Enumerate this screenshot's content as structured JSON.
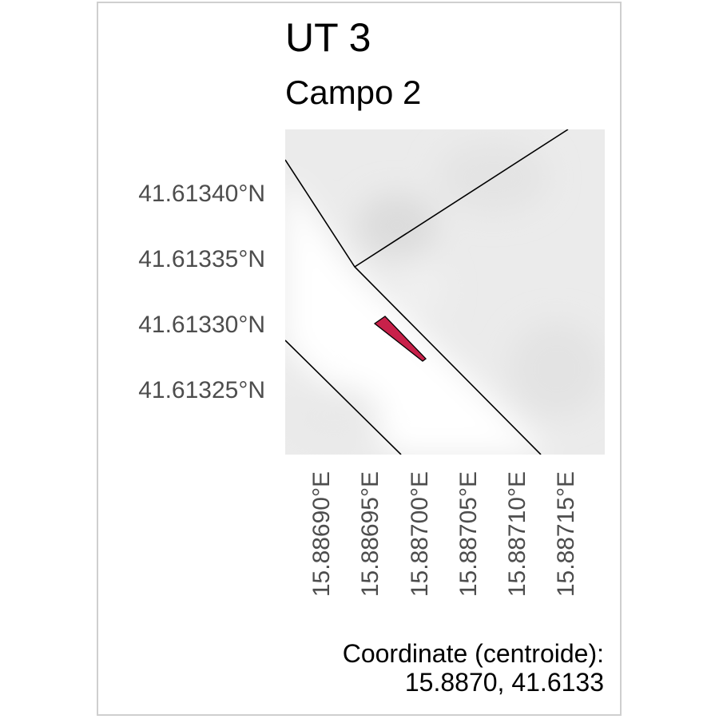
{
  "title": "UT 3",
  "subtitle": "Campo 2",
  "colors": {
    "background_tile": "#ebebeb",
    "road_band": "#fafafa",
    "parcel_lines": "#000000",
    "highlight_fill": "#c8214a",
    "axis_text": "#4d4d4d",
    "frame": "#cfcfcf"
  },
  "map": {
    "lat_labels": [
      "41.61340°N",
      "41.61335°N",
      "41.61330°N",
      "41.61325°N"
    ],
    "lon_labels": [
      "15.88690°E",
      "15.88695°E",
      "15.88700°E",
      "15.88705°E",
      "15.88710°E",
      "15.88715°E"
    ]
  },
  "centroid": {
    "label": "Coordinate (centroide):",
    "value": "15.8870, 41.6133"
  }
}
